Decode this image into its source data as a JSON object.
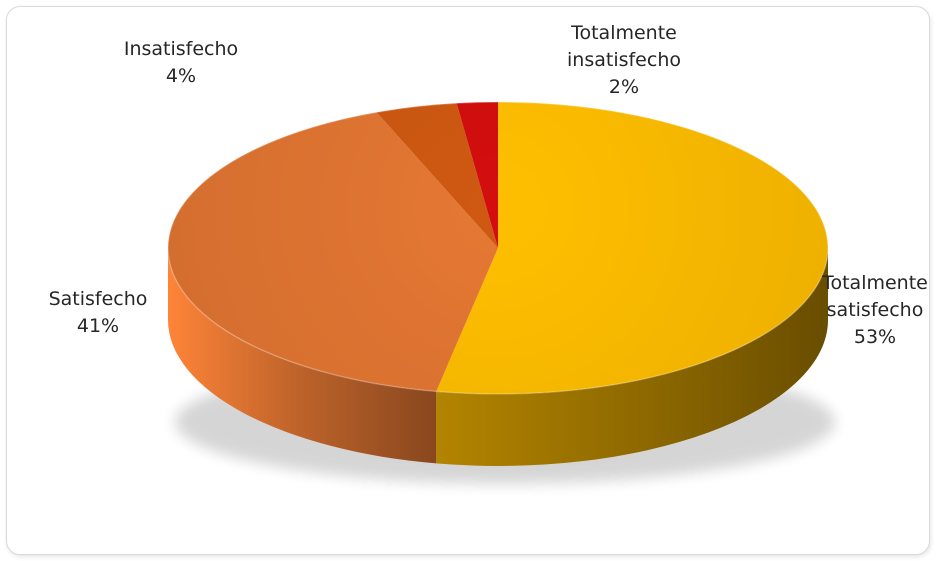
{
  "chart_data": {
    "type": "pie",
    "style": "3d",
    "title": "",
    "slices": [
      {
        "label_lines": [
          "Totalmente",
          "satisfecho"
        ],
        "pct_label": "53%",
        "value": 53,
        "color": "#f9b800"
      },
      {
        "label_lines": [
          "Satisfecho"
        ],
        "pct_label": "41%",
        "value": 41,
        "color": "#dd7331"
      },
      {
        "label_lines": [
          "Insatisfecho"
        ],
        "pct_label": "4%",
        "value": 4,
        "color": "#c85611"
      },
      {
        "label_lines": [
          "Totalmente",
          "insatisfecho"
        ],
        "pct_label": "2%",
        "value": 2,
        "color": "#cc0d0d"
      }
    ],
    "legend": "none",
    "data_labels": "outside"
  }
}
